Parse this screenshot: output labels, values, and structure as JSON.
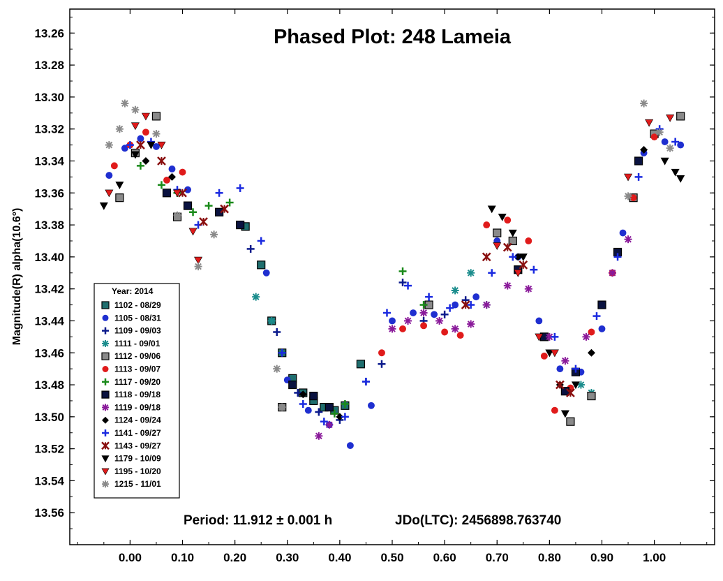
{
  "chart_data": {
    "type": "scatter",
    "title": "Phased Plot: 248 Lameia",
    "ylabel": "Magnitude(R) alpha(10.6°)",
    "xlabel": "",
    "x_ticks": [
      "0.00",
      "0.10",
      "0.20",
      "0.30",
      "0.40",
      "0.50",
      "0.60",
      "0.70",
      "0.80",
      "0.90",
      "1.00"
    ],
    "y_ticks": [
      "13.26",
      "13.28",
      "13.30",
      "13.32",
      "13.34",
      "13.36",
      "13.38",
      "13.40",
      "13.42",
      "13.44",
      "13.46",
      "13.48",
      "13.50",
      "13.52",
      "13.54",
      "13.56"
    ],
    "xlim": [
      -0.115,
      1.115
    ],
    "ylim": [
      13.58,
      13.245
    ],
    "y_inverted": true,
    "period_text": "Period: 11.912 ± 0.001 h",
    "jd_text": "JDo(LTC): 2456898.763740",
    "legend": {
      "title": "Year: 2014",
      "placement": "lower-left",
      "entries": [
        {
          "label": "1102 - 08/29",
          "marker": "square",
          "color": "#1f6e6e"
        },
        {
          "label": "1105 - 08/31",
          "marker": "circle",
          "color": "#1f2fd0"
        },
        {
          "label": "1109 - 09/03",
          "marker": "plus",
          "color": "#0b1a8c"
        },
        {
          "label": "1111 - 09/01",
          "marker": "asterisk",
          "color": "#1a8c8c"
        },
        {
          "label": "1112 - 09/06",
          "marker": "square",
          "color": "#8a8a8a"
        },
        {
          "label": "1113 - 09/07",
          "marker": "circle",
          "color": "#e01b1b"
        },
        {
          "label": "1117 - 09/20",
          "marker": "plus",
          "color": "#1a8a1a"
        },
        {
          "label": "1118 - 09/18",
          "marker": "square",
          "color": "#0a1240"
        },
        {
          "label": "1119 - 09/18",
          "marker": "asterisk",
          "color": "#8a1a9a"
        },
        {
          "label": "1124 - 09/24",
          "marker": "diamond",
          "color": "#000000"
        },
        {
          "label": "1141 - 09/27",
          "marker": "plus",
          "color": "#1a2ae0"
        },
        {
          "label": "1143 - 09/27",
          "marker": "xstar",
          "color": "#8a1010"
        },
        {
          "label": "1179 - 10/09",
          "marker": "tri-down",
          "color": "#000000"
        },
        {
          "label": "1195 - 10/20",
          "marker": "tri-down",
          "color": "#e01b1b"
        },
        {
          "label": "1215 - 11/01",
          "marker": "asterisk",
          "color": "#8a8a8a"
        }
      ]
    },
    "series": [
      {
        "name": "1102 - 08/29",
        "x": [
          0.22,
          0.25,
          0.27,
          0.29,
          0.31,
          0.33,
          0.35,
          0.37,
          0.39,
          0.41,
          0.44
        ],
        "y": [
          13.381,
          13.405,
          13.44,
          13.46,
          13.476,
          13.485,
          13.49,
          13.494,
          13.496,
          13.493,
          13.467
        ]
      },
      {
        "name": "1105 - 08/31",
        "x": [
          -0.04,
          -0.01,
          0.02,
          0.05,
          0.08,
          0.11,
          0.26,
          0.3,
          0.34,
          0.38,
          0.42,
          0.46,
          0.5,
          0.54,
          0.58,
          0.62,
          0.66,
          0.7,
          0.74,
          0.78,
          0.82,
          0.86,
          0.9,
          0.94,
          0.98,
          1.02,
          1.05
        ],
        "y": [
          13.349,
          13.332,
          13.326,
          13.331,
          13.345,
          13.358,
          13.41,
          13.477,
          13.496,
          13.505,
          13.518,
          13.493,
          13.44,
          13.435,
          13.436,
          13.43,
          13.425,
          13.39,
          13.4,
          13.44,
          13.47,
          13.472,
          13.445,
          13.385,
          13.335,
          13.328,
          13.33
        ]
      },
      {
        "name": "1109 - 09/03",
        "x": [
          0.23,
          0.28,
          0.32,
          0.36,
          0.4,
          0.45,
          0.48,
          0.52,
          0.56,
          0.6,
          0.64
        ],
        "y": [
          13.395,
          13.447,
          13.485,
          13.497,
          13.502,
          13.478,
          13.467,
          13.416,
          13.44,
          13.436,
          13.427
        ]
      },
      {
        "name": "1111 - 09/01",
        "x": [
          0.24,
          0.27,
          0.62,
          0.65,
          0.68,
          0.86,
          0.88
        ],
        "y": [
          13.425,
          13.44,
          13.421,
          13.41,
          13.43,
          13.48,
          13.485
        ]
      },
      {
        "name": "1112 - 09/06",
        "x": [
          -0.02,
          0.01,
          0.05,
          0.09,
          0.29,
          0.57,
          0.7,
          0.73,
          0.84,
          0.88,
          0.96,
          1.0,
          1.05
        ],
        "y": [
          13.363,
          13.335,
          13.312,
          13.375,
          13.494,
          13.43,
          13.385,
          13.39,
          13.503,
          13.487,
          13.363,
          13.323,
          13.312
        ]
      },
      {
        "name": "1113 - 09/07",
        "x": [
          -0.03,
          0.0,
          0.03,
          0.07,
          0.1,
          0.48,
          0.52,
          0.56,
          0.6,
          0.63,
          0.68,
          0.72,
          0.76,
          0.79,
          0.81,
          0.84,
          0.88,
          0.92,
          0.96,
          1.0
        ],
        "y": [
          13.343,
          13.33,
          13.322,
          13.352,
          13.347,
          13.46,
          13.445,
          13.443,
          13.447,
          13.449,
          13.38,
          13.377,
          13.39,
          13.462,
          13.496,
          13.482,
          13.447,
          13.41,
          13.363,
          13.325
        ]
      },
      {
        "name": "1117 - 09/20",
        "x": [
          0.02,
          0.06,
          0.09,
          0.12,
          0.15,
          0.19,
          0.39,
          0.41,
          0.52,
          0.56
        ],
        "y": [
          13.343,
          13.355,
          13.36,
          13.372,
          13.368,
          13.366,
          13.498,
          13.492,
          13.409,
          13.43
        ]
      },
      {
        "name": "1118 - 09/18",
        "x": [
          0.07,
          0.11,
          0.17,
          0.21,
          0.31,
          0.35,
          0.38,
          0.74,
          0.79,
          0.83,
          0.85,
          0.9,
          0.93,
          0.97
        ],
        "y": [
          13.36,
          13.368,
          13.372,
          13.38,
          13.48,
          13.487,
          13.494,
          13.408,
          13.45,
          13.484,
          13.472,
          13.43,
          13.397,
          13.34
        ]
      },
      {
        "name": "1119 - 09/18",
        "x": [
          0.36,
          0.38,
          0.5,
          0.53,
          0.56,
          0.59,
          0.62,
          0.65,
          0.68,
          0.72,
          0.76,
          0.8,
          0.83,
          0.87,
          0.92,
          0.95
        ],
        "y": [
          13.512,
          13.505,
          13.445,
          13.44,
          13.435,
          13.44,
          13.445,
          13.442,
          13.43,
          13.418,
          13.42,
          13.45,
          13.465,
          13.45,
          13.41,
          13.389
        ]
      },
      {
        "name": "1124 - 09/24",
        "x": [
          0.03,
          0.08,
          0.33,
          0.4,
          0.74,
          0.82,
          0.88,
          0.98
        ],
        "y": [
          13.34,
          13.35,
          13.486,
          13.5,
          13.4,
          13.48,
          13.46,
          13.333
        ]
      },
      {
        "name": "1141 - 09/27",
        "x": [
          0.0,
          0.04,
          0.09,
          0.13,
          0.17,
          0.21,
          0.25,
          0.29,
          0.33,
          0.37,
          0.41,
          0.45,
          0.49,
          0.53,
          0.57,
          0.61,
          0.65,
          0.69,
          0.73,
          0.77,
          0.81,
          0.85,
          0.89,
          0.93,
          0.97,
          1.01,
          1.04
        ],
        "y": [
          13.33,
          13.328,
          13.358,
          13.38,
          13.36,
          13.357,
          13.39,
          13.46,
          13.492,
          13.503,
          13.5,
          13.478,
          13.435,
          13.418,
          13.425,
          13.432,
          13.43,
          13.41,
          13.4,
          13.408,
          13.45,
          13.47,
          13.437,
          13.4,
          13.35,
          13.32,
          13.328
        ]
      },
      {
        "name": "1143 - 09/27",
        "x": [
          0.02,
          0.06,
          0.1,
          0.14,
          0.18,
          0.64,
          0.68,
          0.72,
          0.75,
          0.82,
          0.84
        ],
        "y": [
          13.33,
          13.34,
          13.36,
          13.378,
          13.37,
          13.43,
          13.4,
          13.394,
          13.405,
          13.48,
          13.485
        ]
      },
      {
        "name": "1179 - 10/09",
        "x": [
          -0.05,
          -0.02,
          0.01,
          0.04,
          0.69,
          0.71,
          0.73,
          0.75,
          0.8,
          0.83,
          0.85,
          1.02,
          1.04,
          1.05
        ],
        "y": [
          13.368,
          13.355,
          13.336,
          13.33,
          13.37,
          13.375,
          13.385,
          13.4,
          13.46,
          13.498,
          13.48,
          13.34,
          13.347,
          13.351
        ]
      },
      {
        "name": "1195 - 10/20",
        "x": [
          -0.04,
          0.01,
          0.03,
          0.06,
          0.09,
          0.12,
          0.13,
          0.7,
          0.74,
          0.78,
          0.81,
          0.95,
          0.99,
          1.03
        ],
        "y": [
          13.36,
          13.318,
          13.312,
          13.33,
          13.36,
          13.384,
          13.402,
          13.393,
          13.41,
          13.45,
          13.46,
          13.35,
          13.316,
          13.313
        ]
      },
      {
        "name": "1215 - 11/01",
        "x": [
          -0.04,
          -0.02,
          -0.01,
          0.01,
          0.05,
          0.09,
          0.13,
          0.16,
          0.28,
          0.29,
          0.95,
          0.98,
          1.01,
          1.03
        ],
        "y": [
          13.33,
          13.32,
          13.304,
          13.308,
          13.323,
          13.374,
          13.406,
          13.386,
          13.47,
          13.494,
          13.362,
          13.304,
          13.322,
          13.332
        ]
      }
    ]
  }
}
